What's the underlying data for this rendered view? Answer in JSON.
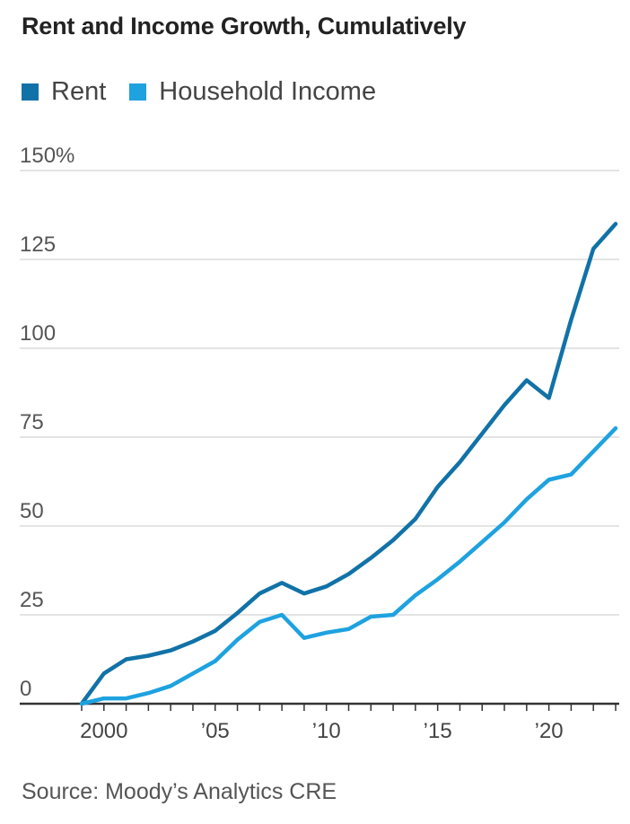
{
  "title": "Rent and Income Growth, Cumulatively",
  "source": "Source: Moody’s Analytics CRE",
  "colors": {
    "rent": "#1172a7",
    "income": "#1ea2e0",
    "grid": "#dcdcdc",
    "axis": "#333333"
  },
  "chart_data": {
    "type": "line",
    "title": "Rent and Income Growth, Cumulatively",
    "xlabel": "",
    "ylabel": "",
    "ylim": [
      0,
      150
    ],
    "xlim": [
      1999,
      2023
    ],
    "grid": true,
    "legend_position": "top-left",
    "y_ticks": [
      {
        "value": 0,
        "label": "0"
      },
      {
        "value": 25,
        "label": "25"
      },
      {
        "value": 50,
        "label": "50"
      },
      {
        "value": 75,
        "label": "75"
      },
      {
        "value": 100,
        "label": "100"
      },
      {
        "value": 125,
        "label": "125"
      },
      {
        "value": 150,
        "label": "150%"
      }
    ],
    "x_ticks": [
      {
        "value": 2000,
        "label": "2000"
      },
      {
        "value": 2005,
        "label": "’05"
      },
      {
        "value": 2010,
        "label": "’10"
      },
      {
        "value": 2015,
        "label": "’15"
      },
      {
        "value": 2020,
        "label": "’20"
      }
    ],
    "x": [
      1999,
      2000,
      2001,
      2002,
      2003,
      2004,
      2005,
      2006,
      2007,
      2008,
      2009,
      2010,
      2011,
      2012,
      2013,
      2014,
      2015,
      2016,
      2017,
      2018,
      2019,
      2020,
      2021,
      2022,
      2023
    ],
    "series": [
      {
        "name": "Rent",
        "values": [
          0,
          8.5,
          12.5,
          13.5,
          15,
          17.5,
          20.5,
          25.5,
          31,
          34,
          31,
          33,
          36.5,
          41,
          46,
          52,
          61,
          68,
          76,
          84,
          91,
          86,
          108,
          128,
          135
        ]
      },
      {
        "name": "Household Income",
        "values": [
          0,
          1.5,
          1.5,
          3,
          5,
          8.5,
          12,
          18,
          23,
          25,
          18.5,
          20,
          21,
          24.5,
          25,
          30.5,
          35,
          40,
          45.5,
          51,
          57.5,
          63,
          64.5,
          71,
          77.5
        ]
      }
    ]
  }
}
